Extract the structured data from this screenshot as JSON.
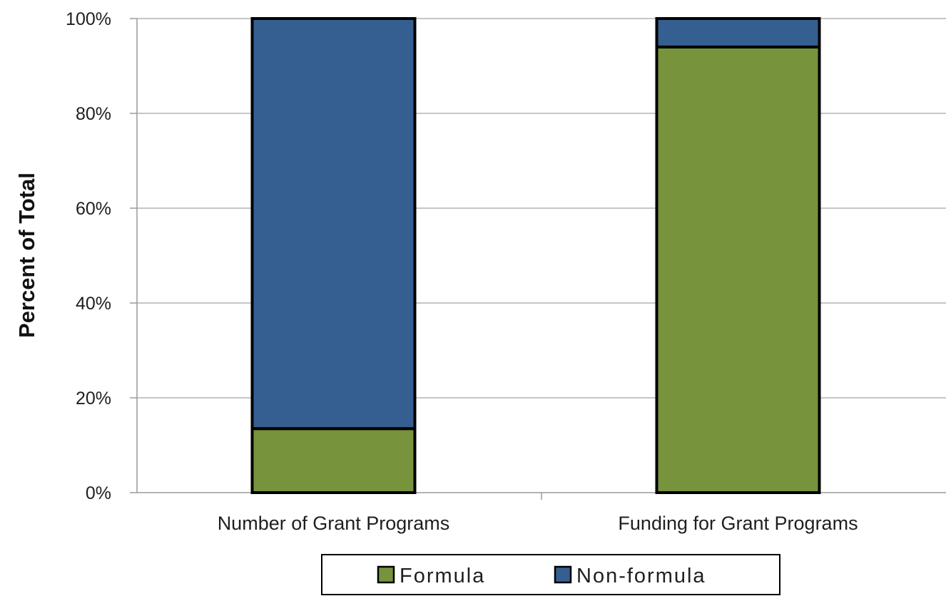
{
  "chart_data": {
    "type": "bar",
    "stacked": true,
    "categories": [
      "Number of Grant Programs",
      "Funding for Grant Programs"
    ],
    "series": [
      {
        "name": "Formula",
        "values": [
          13.5,
          94
        ],
        "color": "#77933c"
      },
      {
        "name": "Non-formula",
        "values": [
          86.5,
          6
        ],
        "color": "#355f91"
      }
    ],
    "ylabel": "Percent of Total",
    "xlabel": "",
    "ylim": [
      0,
      100
    ],
    "yticks": [
      "0%",
      "20%",
      "40%",
      "60%",
      "80%",
      "100%"
    ],
    "ytick_values": [
      0,
      20,
      40,
      60,
      80,
      100
    ],
    "grid": true,
    "legend": "bottom"
  }
}
